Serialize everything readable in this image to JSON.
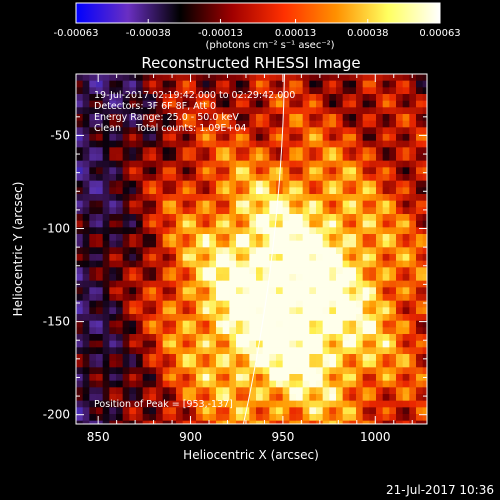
{
  "chart_data": {
    "type": "heatmap",
    "title": "Reconstructed RHESSI Image",
    "xlabel": "Heliocentric X (arcsec)",
    "ylabel": "Heliocentric Y (arcsec)",
    "xlim": [
      838,
      1028
    ],
    "ylim": [
      -205,
      -17
    ],
    "x_ticks": [
      850,
      900,
      950,
      1000
    ],
    "y_ticks": [
      -50,
      -100,
      -150,
      -200
    ],
    "colorbar": {
      "range": [
        -0.00063,
        0.00063
      ],
      "tick_values": [
        -0.00063,
        -0.00038,
        -0.00013,
        0.00013,
        0.00038,
        0.00063
      ],
      "tick_labels": [
        "-0.00063",
        "-0.00038",
        "-0.00013",
        "0.00013",
        "0.00038",
        "0.00063"
      ],
      "unit_label": "(photons cm⁻² s⁻¹ asec⁻²)",
      "colormap": [
        "#0000ff",
        "#6a2fc2",
        "#000000",
        "#a00000",
        "#ff3000",
        "#ff9000",
        "#ffff60",
        "#ffffff"
      ]
    },
    "annotations": [
      "19-Jul-2017 02:19:42.000 to 02:29:42.000",
      "Detectors: 3F 6F 8F, Att 0",
      "Energy Range: 25.0 - 50.0 keV",
      "Clean     Total counts: 1.09E+04"
    ],
    "peak_label": "Position of Peak = [953,-137]",
    "peak": [
      953,
      -137
    ],
    "limb_color": "#ffffff"
  },
  "footer": {
    "timestamp": "21-Jul-2017 10:36"
  }
}
